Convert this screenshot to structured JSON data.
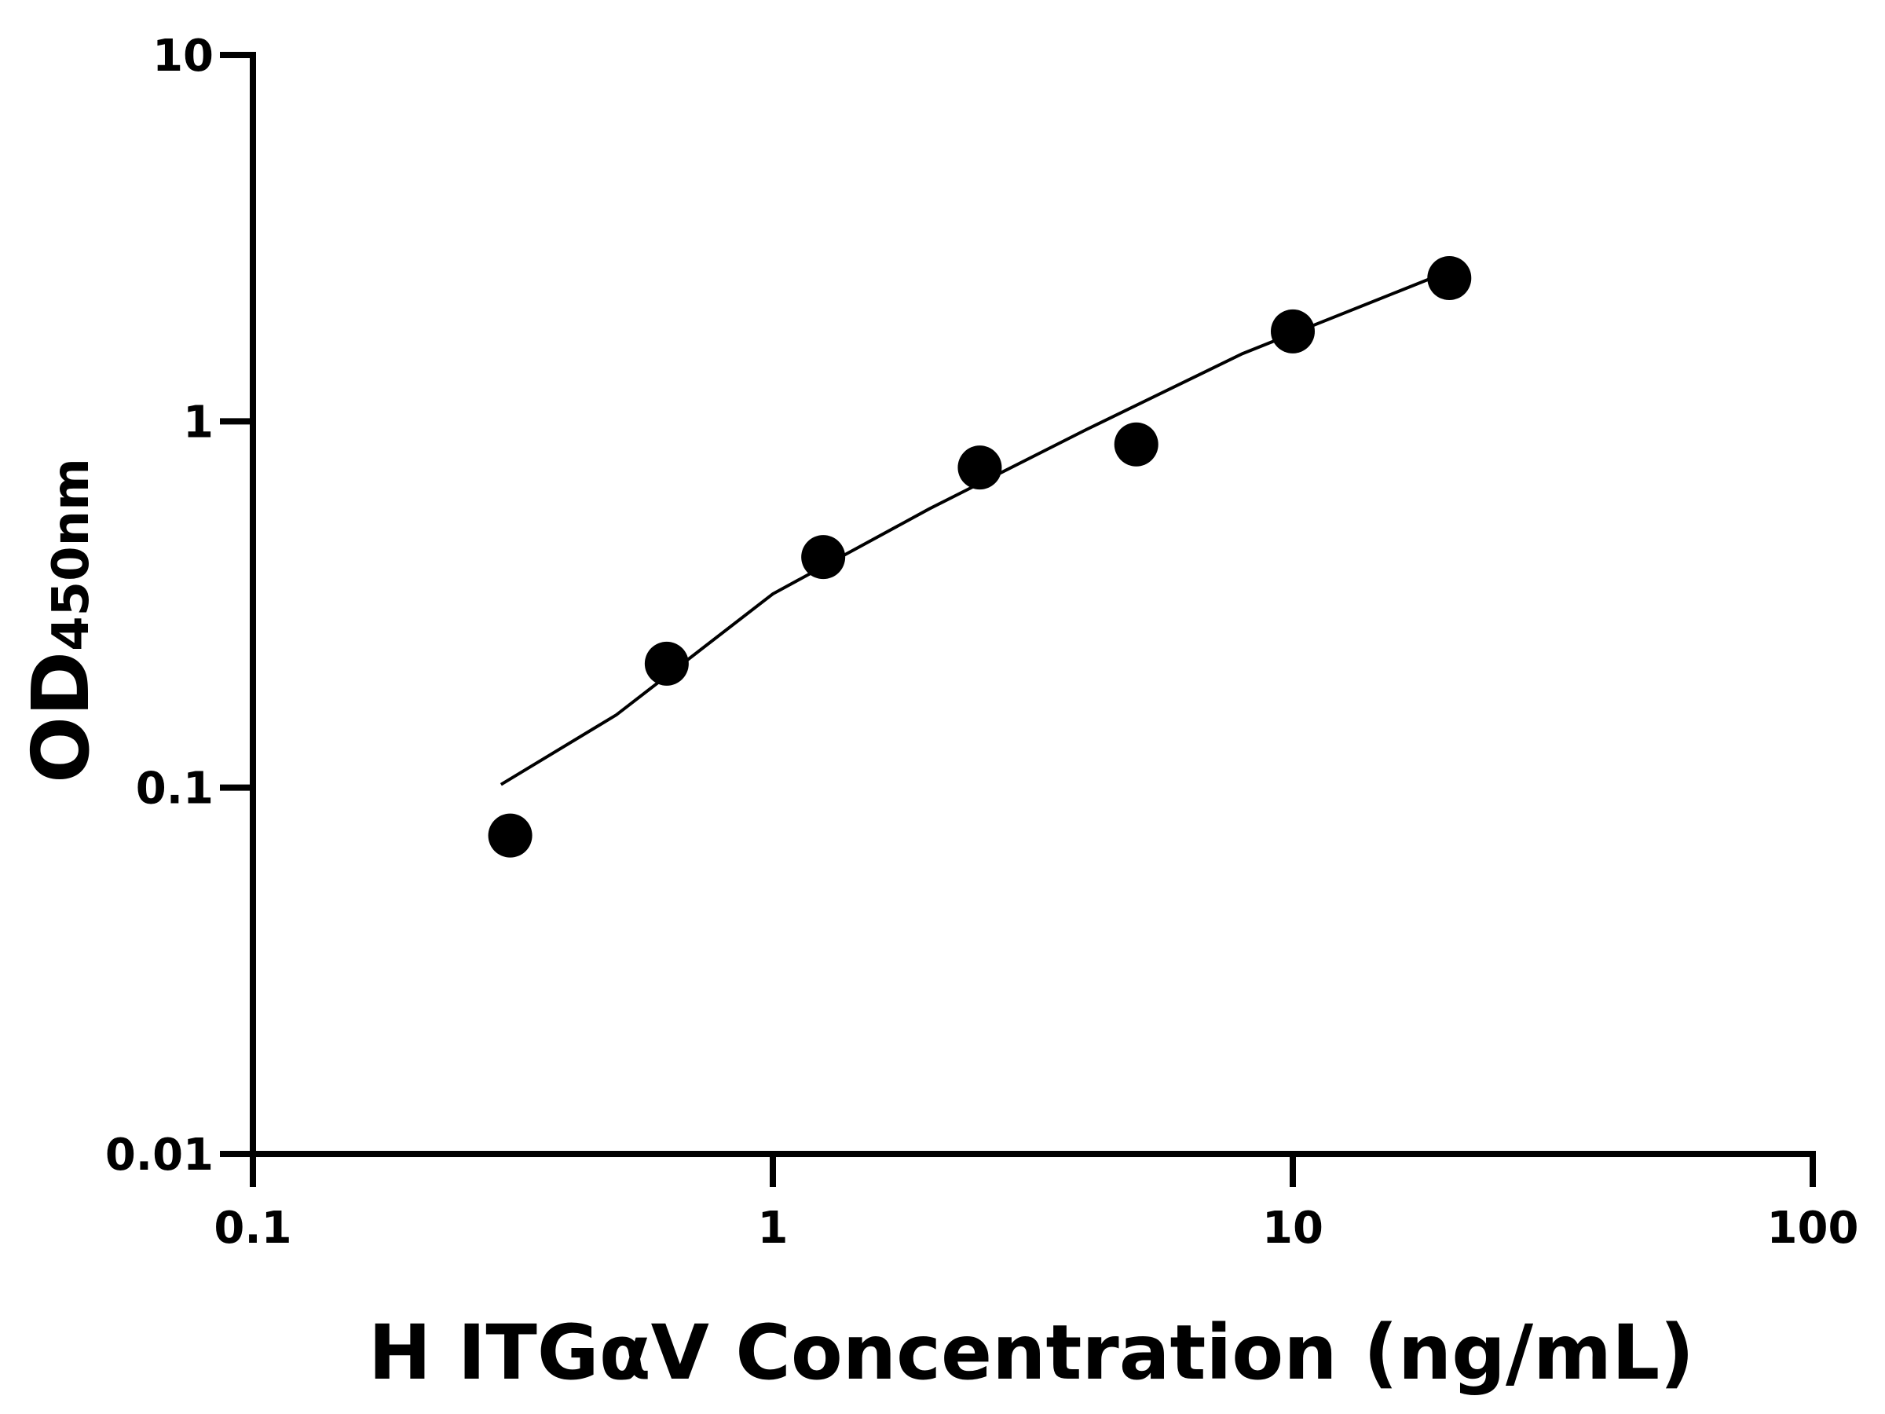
{
  "chart_data": {
    "type": "scatter",
    "x_label": "H ITGαV Concentration (ng/mL)",
    "y_label": "OD",
    "y_label_sub": "450nm",
    "xscale": "log",
    "yscale": "log",
    "xlim": [
      0.1,
      100
    ],
    "xticks": [
      0.1,
      1,
      10,
      100
    ],
    "ylim": [
      0.01,
      10
    ],
    "yticks": [
      0.01,
      0.1,
      1,
      10
    ],
    "series": [
      {
        "color": "#000000",
        "marker": "circle",
        "x": [
          0.3125,
          0.625,
          1.25,
          2.5,
          5,
          10,
          20
        ],
        "values": [
          0.074,
          0.218,
          0.426,
          0.748,
          0.865,
          1.76,
          2.46
        ]
      },
      {
        "color": "#000000",
        "marker": "line",
        "x": [
          0.3,
          0.5,
          1,
          2,
          4,
          8,
          18.5
        ],
        "values": [
          0.102,
          0.158,
          0.338,
          0.577,
          0.948,
          1.53,
          2.46
        ]
      }
    ]
  }
}
